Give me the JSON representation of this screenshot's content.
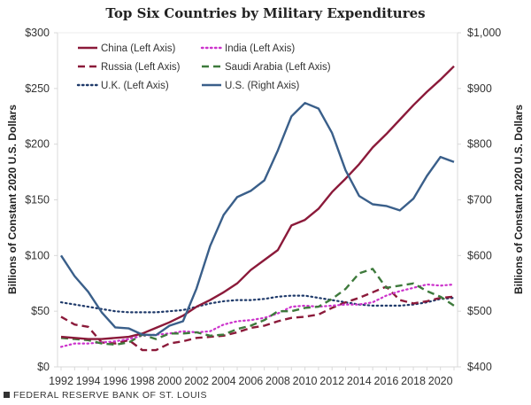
{
  "chart_data": {
    "type": "line",
    "title": "Top Six Countries by Military Expenditures",
    "ylabel_left": "Billions of Constant 2020 U.S. Dollars",
    "ylabel_right": "Billions of Constant 2020 U.S. Dollars",
    "ylim_left": [
      0,
      300
    ],
    "ylim_right": [
      400,
      1000
    ],
    "yticks_left": [
      "$0",
      "$50",
      "$100",
      "$150",
      "$200",
      "$250",
      "$300"
    ],
    "yticks_left_values": [
      0,
      50,
      100,
      150,
      200,
      250,
      300
    ],
    "yticks_right": [
      "$400",
      "$500",
      "$600",
      "$700",
      "$800",
      "$900",
      "$1,000"
    ],
    "yticks_right_values": [
      400,
      500,
      600,
      700,
      800,
      900,
      1000
    ],
    "xticks": [
      "1992",
      "1994",
      "1996",
      "1998",
      "2000",
      "2002",
      "2004",
      "2006",
      "2008",
      "2010",
      "2012",
      "2014",
      "2016",
      "2018",
      "2020"
    ],
    "xlim": [
      1992,
      2021
    ],
    "legend_position": "top-left",
    "x": [
      1992,
      1993,
      1994,
      1995,
      1996,
      1997,
      1998,
      1999,
      2000,
      2001,
      2002,
      2003,
      2004,
      2005,
      2006,
      2007,
      2008,
      2009,
      2010,
      2011,
      2012,
      2013,
      2014,
      2015,
      2016,
      2017,
      2018,
      2019,
      2020,
      2021
    ],
    "series": [
      {
        "name": "China (Left Axis)",
        "axis": "left",
        "color": "#8b1a3a",
        "style": "solid",
        "values": [
          27,
          26,
          25,
          25,
          26,
          27,
          30,
          35,
          40,
          46,
          54,
          60,
          67,
          75,
          87,
          96,
          105,
          127,
          132,
          142,
          157,
          169,
          182,
          197,
          209,
          222,
          235,
          247,
          258,
          270
        ]
      },
      {
        "name": "India (Left Axis)",
        "axis": "left",
        "color": "#cc33cc",
        "style": "dotted",
        "values": [
          18,
          21,
          21,
          22,
          23,
          25,
          28,
          29,
          30,
          32,
          31,
          32,
          38,
          41,
          42,
          44,
          48,
          54,
          55,
          54,
          55,
          56,
          56,
          58,
          64,
          68,
          71,
          74,
          73,
          74
        ]
      },
      {
        "name": "Russia (Left Axis)",
        "axis": "left",
        "color": "#8b1a3a",
        "style": "dashed",
        "values": [
          45,
          38,
          36,
          22,
          21,
          24,
          15,
          15,
          21,
          23,
          26,
          27,
          28,
          31,
          35,
          37,
          41,
          44,
          45,
          47,
          53,
          58,
          62,
          67,
          72,
          60,
          57,
          59,
          62,
          63
        ]
      },
      {
        "name": "Saudi Arabia (Left Axis)",
        "axis": "left",
        "color": "#3e7a3c",
        "style": "dashed",
        "values": [
          26,
          25,
          24,
          21,
          20,
          22,
          29,
          25,
          30,
          30,
          31,
          28,
          29,
          34,
          37,
          42,
          50,
          50,
          53,
          54,
          61,
          70,
          84,
          88,
          71,
          73,
          75,
          68,
          63,
          55
        ]
      },
      {
        "name": "U.K. (Left Axis)",
        "axis": "left",
        "color": "#1f3a6a",
        "style": "dotted",
        "values": [
          58,
          56,
          54,
          52,
          50,
          49,
          49,
          49,
          50,
          51,
          54,
          57,
          59,
          60,
          60,
          61,
          63,
          64,
          64,
          62,
          60,
          58,
          56,
          55,
          55,
          55,
          56,
          58,
          61,
          62
        ]
      },
      {
        "name": "U.S. (Right Axis)",
        "axis": "right",
        "color": "#3a5f8a",
        "style": "solid",
        "values": [
          600,
          563,
          535,
          498,
          471,
          469,
          458,
          457,
          474,
          482,
          541,
          617,
          673,
          705,
          716,
          735,
          789,
          850,
          874,
          864,
          820,
          753,
          707,
          692,
          689,
          681,
          702,
          743,
          777,
          768
        ]
      }
    ]
  },
  "footer": {
    "source": "FEDERAL RESERVE BANK OF ST. LOUIS"
  }
}
